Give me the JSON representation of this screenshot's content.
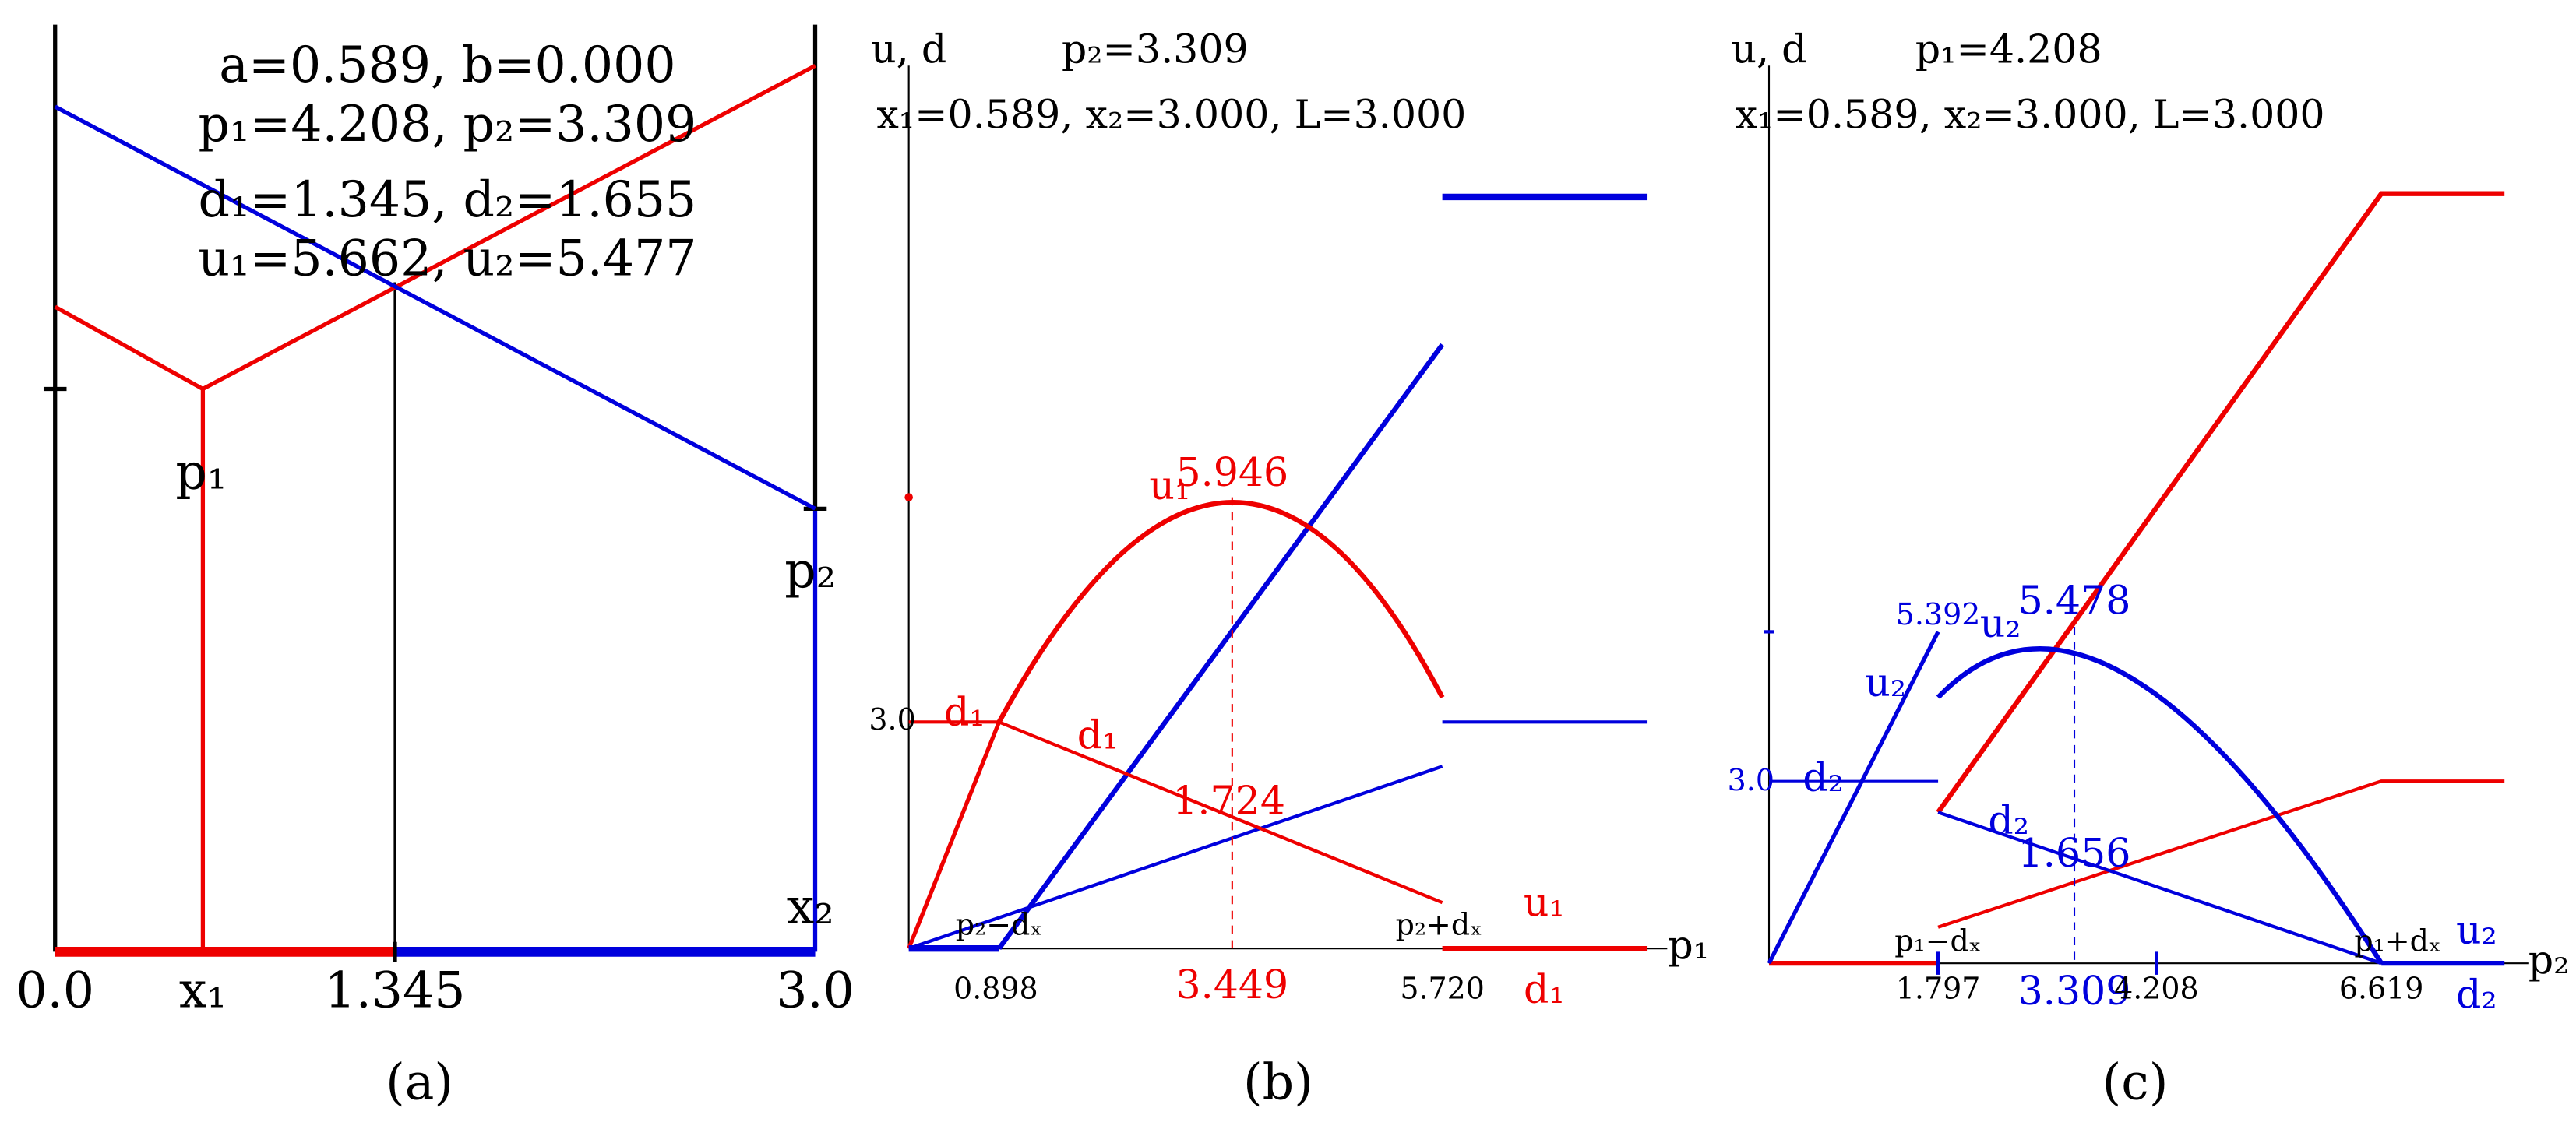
{
  "panel_a": {
    "caption": "(a)",
    "info": [
      "a=0.589, b=0.000",
      "p₁=4.208, p₂=3.309",
      "d₁=1.345, d₂=1.655",
      "u₁=5.662, u₂=5.477"
    ],
    "labels": [
      "p₁",
      "p₂",
      "x₂"
    ],
    "ticks": [
      "0.0",
      "x₁",
      "1.345",
      "3.0"
    ]
  },
  "panel_b": {
    "caption": "(b)",
    "y_axis": "u, d",
    "x_axis": "p₁",
    "header": "p₂=3.309",
    "params": "x₁=0.589, x₂=3.000, L=3.000",
    "labels": [
      "3.0",
      "d₁",
      "d₁",
      "u₁",
      "5.946",
      "1.724",
      "p₂−dₓ",
      "p₂+dₓ",
      "u₁",
      "d₁"
    ],
    "ticks": [
      "0.898",
      "3.449",
      "5.720"
    ]
  },
  "panel_c": {
    "caption": "(c)",
    "y_axis": "u, d",
    "x_axis": "p₂",
    "header": "p₁=4.208",
    "params": "x₁=0.589, x₂=3.000, L=3.000",
    "labels": [
      "5.392",
      "u₂",
      "u₂",
      "5.478",
      "3.0",
      "d₂",
      "d₂",
      "1.656",
      "p₁−dₓ",
      "p₁+dₓ",
      "u₂",
      "d₂"
    ],
    "ticks": [
      "1.797",
      "3.309",
      "4.208",
      "6.619"
    ]
  }
}
